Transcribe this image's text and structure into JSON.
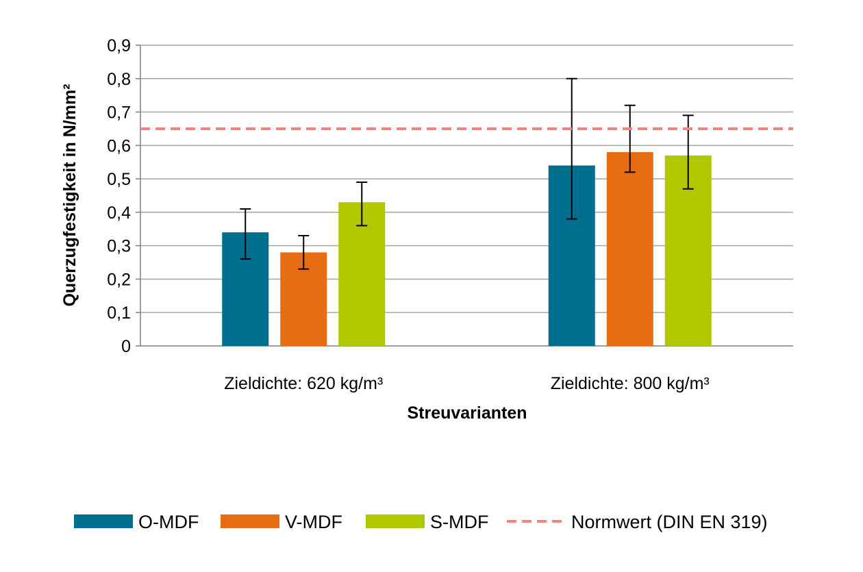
{
  "chart_data": {
    "type": "bar",
    "title": "",
    "ylabel": "Querzugfestigkeit in N/mm²",
    "xlabel": "Streuvarianten",
    "ylim": [
      0,
      0.9
    ],
    "yticks": [
      "0",
      "0,1",
      "0,2",
      "0,3",
      "0,4",
      "0,5",
      "0,6",
      "0,7",
      "0,8",
      "0,9"
    ],
    "ytick_values": [
      0,
      0.1,
      0.2,
      0.3,
      0.4,
      0.5,
      0.6,
      0.7,
      0.8,
      0.9
    ],
    "grid": true,
    "legend_position": "bottom",
    "categories": [
      "Zieldichte: 620 kg/m³",
      "Zieldichte: 800 kg/m³"
    ],
    "series": [
      {
        "name": "O-MDF",
        "color": "#006E8F",
        "values": [
          0.34,
          0.54
        ],
        "err_low": [
          0.26,
          0.38
        ],
        "err_high": [
          0.41,
          0.8
        ]
      },
      {
        "name": "V-MDF",
        "color": "#E86C12",
        "values": [
          0.28,
          0.58
        ],
        "err_low": [
          0.23,
          0.52
        ],
        "err_high": [
          0.33,
          0.72
        ]
      },
      {
        "name": "S-MDF",
        "color": "#B1C700",
        "values": [
          0.43,
          0.57
        ],
        "err_low": [
          0.36,
          0.47
        ],
        "err_high": [
          0.49,
          0.69
        ]
      }
    ],
    "reference_line": {
      "name": "Normwert (DIN EN 319)",
      "value": 0.65,
      "color": "#F4857C",
      "style": "dashed"
    }
  }
}
